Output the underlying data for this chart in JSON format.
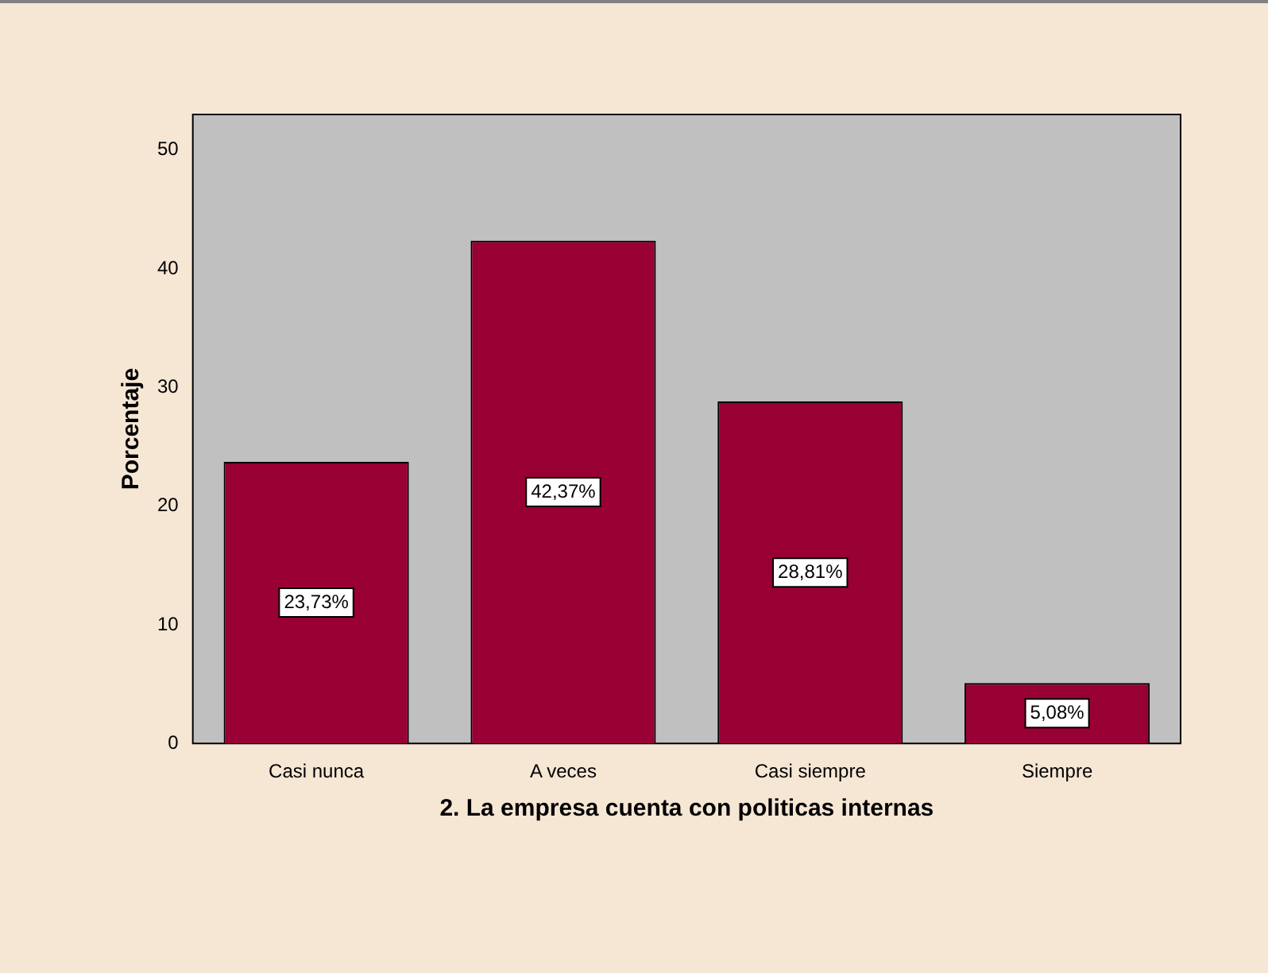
{
  "chart_data": {
    "type": "bar",
    "xlabel": "2. La empresa cuenta con politicas internas",
    "ylabel": "Porcentaje",
    "categories": [
      "Casi nunca",
      "A veces",
      "Casi siempre",
      "Siempre"
    ],
    "values": [
      23.73,
      42.37,
      28.81,
      5.08
    ],
    "value_labels": [
      "23,73%",
      "42,37%",
      "28,81%",
      "5,08%"
    ],
    "color": "#990033",
    "ylim": [
      0,
      53
    ],
    "yticks": [
      0,
      10,
      20,
      30,
      40,
      50
    ],
    "grid": false,
    "legend": false
  }
}
